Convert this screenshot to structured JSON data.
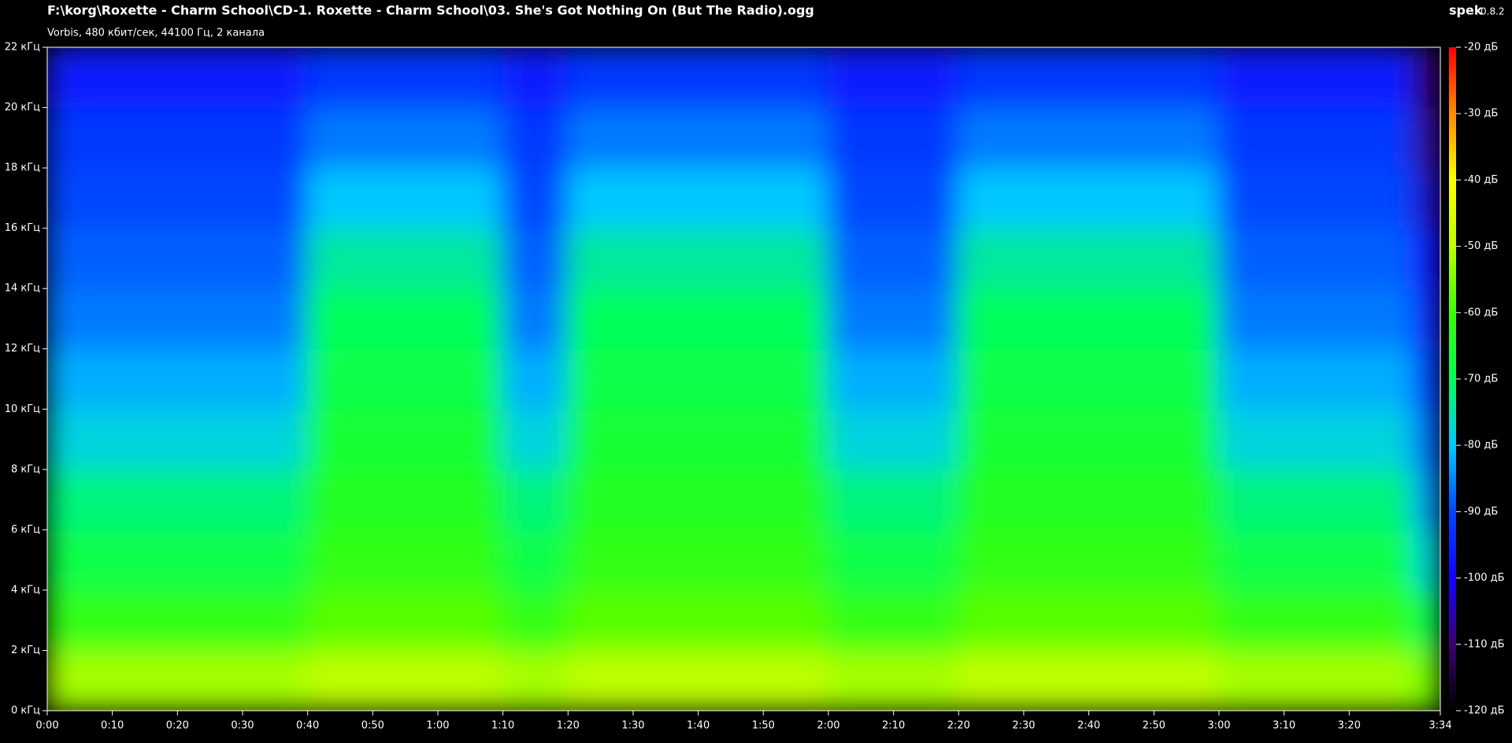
{
  "chart_data": {
    "type": "spectrogram",
    "title": "F:\\korg\\Roxette - Charm School\\CD-1. Roxette - Charm School\\03. She's Got Nothing On (But The Radio).ogg",
    "subtitle": "Vorbis, 480 кбит/сек, 44100 Гц, 2 канала",
    "app_name": "spek",
    "app_version": "0.8.2",
    "xlim": [
      0,
      214
    ],
    "ylim": [
      0,
      22
    ],
    "clim": [
      -120,
      -20
    ],
    "xticks": [
      {
        "value": 0,
        "label": "0:00"
      },
      {
        "value": 10,
        "label": "0:10"
      },
      {
        "value": 20,
        "label": "0:20"
      },
      {
        "value": 30,
        "label": "0:30"
      },
      {
        "value": 40,
        "label": "0:40"
      },
      {
        "value": 50,
        "label": "0:50"
      },
      {
        "value": 60,
        "label": "1:00"
      },
      {
        "value": 70,
        "label": "1:10"
      },
      {
        "value": 80,
        "label": "1:20"
      },
      {
        "value": 90,
        "label": "1:30"
      },
      {
        "value": 100,
        "label": "1:40"
      },
      {
        "value": 110,
        "label": "1:50"
      },
      {
        "value": 120,
        "label": "2:00"
      },
      {
        "value": 130,
        "label": "2:10"
      },
      {
        "value": 140,
        "label": "2:20"
      },
      {
        "value": 150,
        "label": "2:30"
      },
      {
        "value": 160,
        "label": "2:40"
      },
      {
        "value": 170,
        "label": "2:50"
      },
      {
        "value": 180,
        "label": "3:00"
      },
      {
        "value": 190,
        "label": "3:10"
      },
      {
        "value": 200,
        "label": "3:20"
      },
      {
        "value": 214,
        "label": "3:34"
      }
    ],
    "yticks": [
      {
        "value": 0,
        "label": "0 кГц"
      },
      {
        "value": 2,
        "label": "2 кГц"
      },
      {
        "value": 4,
        "label": "4 кГц"
      },
      {
        "value": 6,
        "label": "6 кГц"
      },
      {
        "value": 8,
        "label": "8 кГц"
      },
      {
        "value": 10,
        "label": "10 кГц"
      },
      {
        "value": 12,
        "label": "12 кГц"
      },
      {
        "value": 14,
        "label": "14 кГц"
      },
      {
        "value": 16,
        "label": "16 кГц"
      },
      {
        "value": 18,
        "label": "18 кГц"
      },
      {
        "value": 20,
        "label": "20 кГц"
      },
      {
        "value": 22,
        "label": "22 кГц"
      }
    ],
    "cticks": [
      {
        "value": -20,
        "label": "-20 дБ"
      },
      {
        "value": -30,
        "label": "-30 дБ"
      },
      {
        "value": -40,
        "label": "-40 дБ"
      },
      {
        "value": -50,
        "label": "-50 дБ"
      },
      {
        "value": -60,
        "label": "-60 дБ"
      },
      {
        "value": -70,
        "label": "-70 дБ"
      },
      {
        "value": -80,
        "label": "-80 дБ"
      },
      {
        "value": -90,
        "label": "-90 дБ"
      },
      {
        "value": -100,
        "label": "-100 дБ"
      },
      {
        "value": -110,
        "label": "-110 дБ"
      },
      {
        "value": -120,
        "label": "-120 дБ"
      }
    ],
    "xbins": [
      0,
      10,
      20,
      30,
      40,
      50,
      60,
      70,
      80,
      90,
      100,
      110,
      120,
      130,
      140,
      150,
      160,
      170,
      180,
      190,
      200,
      210,
      214
    ],
    "ybins": [
      0,
      2,
      4,
      6,
      8,
      10,
      12,
      14,
      16,
      18,
      20,
      22
    ],
    "values": [
      [
        -52,
        -52,
        -52,
        -52,
        -50,
        -50,
        -50,
        -52,
        -50,
        -50,
        -50,
        -50,
        -52,
        -52,
        -50,
        -50,
        -50,
        -50,
        -52,
        -52,
        -52,
        -56
      ],
      [
        -62,
        -62,
        -62,
        -62,
        -58,
        -58,
        -58,
        -62,
        -58,
        -58,
        -58,
        -58,
        -62,
        -62,
        -58,
        -58,
        -58,
        -58,
        -62,
        -62,
        -62,
        -70
      ],
      [
        -68,
        -68,
        -68,
        -68,
        -62,
        -62,
        -62,
        -68,
        -62,
        -62,
        -62,
        -62,
        -68,
        -68,
        -62,
        -62,
        -62,
        -62,
        -68,
        -68,
        -68,
        -78
      ],
      [
        -72,
        -72,
        -72,
        -72,
        -64,
        -64,
        -64,
        -72,
        -64,
        -64,
        -64,
        -64,
        -72,
        -72,
        -64,
        -64,
        -64,
        -64,
        -72,
        -72,
        -72,
        -84
      ],
      [
        -78,
        -78,
        -78,
        -78,
        -66,
        -66,
        -66,
        -78,
        -66,
        -66,
        -66,
        -66,
        -78,
        -78,
        -66,
        -66,
        -66,
        -66,
        -78,
        -78,
        -78,
        -88
      ],
      [
        -82,
        -82,
        -82,
        -82,
        -68,
        -68,
        -68,
        -82,
        -68,
        -68,
        -68,
        -68,
        -82,
        -82,
        -68,
        -68,
        -68,
        -68,
        -82,
        -82,
        -82,
        -92
      ],
      [
        -86,
        -86,
        -86,
        -86,
        -70,
        -70,
        -70,
        -86,
        -70,
        -70,
        -70,
        -70,
        -86,
        -86,
        -70,
        -70,
        -70,
        -70,
        -86,
        -86,
        -86,
        -96
      ],
      [
        -88,
        -88,
        -88,
        -88,
        -74,
        -74,
        -74,
        -88,
        -74,
        -74,
        -74,
        -74,
        -88,
        -88,
        -74,
        -74,
        -74,
        -74,
        -88,
        -88,
        -88,
        -100
      ],
      [
        -90,
        -90,
        -90,
        -90,
        -80,
        -80,
        -80,
        -90,
        -80,
        -80,
        -80,
        -80,
        -90,
        -90,
        -80,
        -80,
        -80,
        -80,
        -90,
        -90,
        -90,
        -104
      ],
      [
        -92,
        -92,
        -92,
        -92,
        -86,
        -86,
        -86,
        -92,
        -86,
        -86,
        -86,
        -86,
        -92,
        -92,
        -86,
        -86,
        -86,
        -86,
        -92,
        -92,
        -92,
        -108
      ],
      [
        -96,
        -96,
        -96,
        -96,
        -92,
        -92,
        -92,
        -96,
        -92,
        -92,
        -92,
        -92,
        -96,
        -96,
        -92,
        -92,
        -92,
        -92,
        -96,
        -96,
        -96,
        -112
      ]
    ]
  }
}
